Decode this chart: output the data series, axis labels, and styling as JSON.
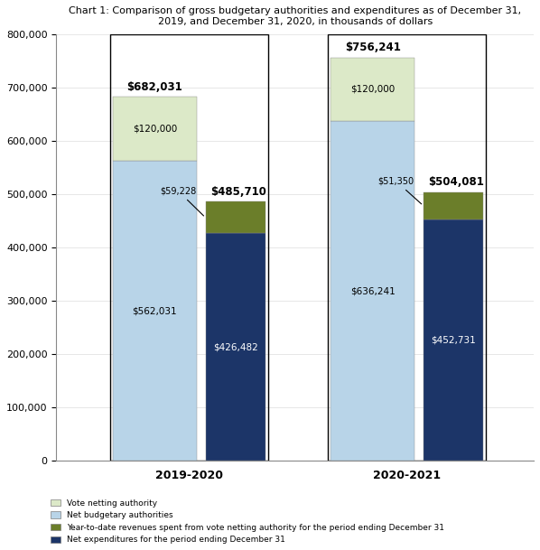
{
  "title": "Chart 1: Comparison of gross budgetary authorities and expenditures as of December 31,\n2019, and December 31, 2020, in thousands of dollars",
  "groups": [
    "2019-2020",
    "2020-2021"
  ],
  "net_budgetary_authorities": [
    562031,
    636241
  ],
  "vote_netting_authority": [
    120000,
    120000
  ],
  "net_expenditures": [
    426482,
    452731
  ],
  "ytd_revenues": [
    59228,
    51350
  ],
  "color_vote_netting": "#dce9c8",
  "color_net_budgetary": "#b8d4e8",
  "color_ytd_revenues": "#6b7e2a",
  "color_net_expenditures": "#1c3568",
  "ylim": [
    0,
    800000
  ],
  "yticks": [
    0,
    100000,
    200000,
    300000,
    400000,
    500000,
    600000,
    700000,
    800000
  ],
  "left_bar_width": 0.28,
  "right_bar_width": 0.2,
  "group_centers": [
    0.27,
    1.07
  ],
  "legend_labels": [
    "Vote netting authority",
    "Net budgetary authorities",
    "Year-to-date revenues spent from vote netting authority for the period ending December 31",
    "Net expenditures for the period ending December 31"
  ]
}
